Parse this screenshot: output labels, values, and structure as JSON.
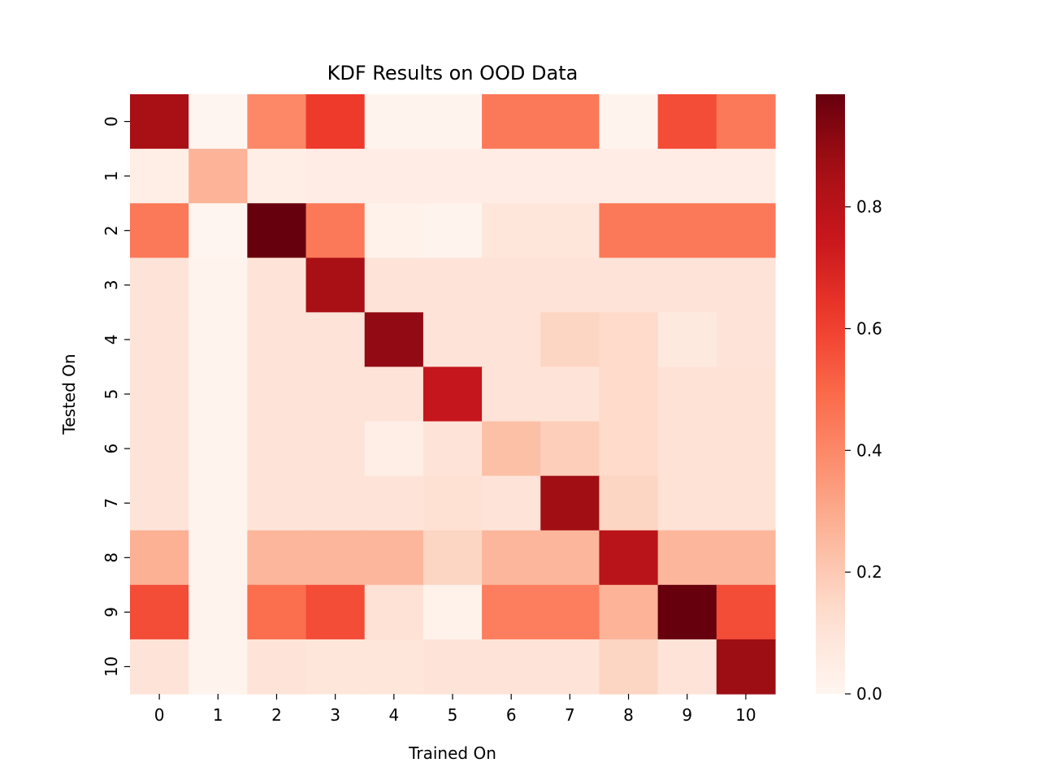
{
  "chart_data": {
    "type": "heatmap",
    "title": "KDF Results on OOD Data",
    "xlabel": "Trained On",
    "ylabel": "Tested On",
    "x_categories": [
      "0",
      "1",
      "2",
      "3",
      "4",
      "5",
      "6",
      "7",
      "8",
      "9",
      "10"
    ],
    "y_categories": [
      "0",
      "1",
      "2",
      "3",
      "4",
      "5",
      "6",
      "7",
      "8",
      "9",
      "10"
    ],
    "colormap": "Reds",
    "vmin": 0.0,
    "vmax": 0.985,
    "colorbar_ticks": [
      "0.0",
      "0.2",
      "0.4",
      "0.6",
      "0.8"
    ],
    "colorbar_tick_values": [
      0.0,
      0.2,
      0.4,
      0.6,
      0.8
    ],
    "values": [
      [
        0.85,
        0.0,
        0.4,
        0.62,
        0.01,
        0.01,
        0.45,
        0.45,
        0.01,
        0.57,
        0.45
      ],
      [
        0.04,
        0.27,
        0.04,
        0.05,
        0.05,
        0.05,
        0.05,
        0.05,
        0.05,
        0.05,
        0.05
      ],
      [
        0.45,
        0.0,
        0.985,
        0.45,
        0.02,
        0.01,
        0.09,
        0.09,
        0.45,
        0.45,
        0.45
      ],
      [
        0.1,
        0.01,
        0.1,
        0.85,
        0.1,
        0.1,
        0.1,
        0.1,
        0.1,
        0.1,
        0.1
      ],
      [
        0.1,
        0.01,
        0.1,
        0.1,
        0.9,
        0.1,
        0.1,
        0.16,
        0.14,
        0.07,
        0.1
      ],
      [
        0.1,
        0.01,
        0.1,
        0.1,
        0.1,
        0.76,
        0.1,
        0.1,
        0.14,
        0.11,
        0.11
      ],
      [
        0.1,
        0.01,
        0.1,
        0.1,
        0.04,
        0.1,
        0.23,
        0.18,
        0.14,
        0.11,
        0.11
      ],
      [
        0.1,
        0.01,
        0.1,
        0.1,
        0.1,
        0.12,
        0.1,
        0.87,
        0.16,
        0.11,
        0.11
      ],
      [
        0.28,
        0.01,
        0.26,
        0.26,
        0.26,
        0.16,
        0.26,
        0.26,
        0.8,
        0.26,
        0.26
      ],
      [
        0.57,
        0.01,
        0.48,
        0.57,
        0.11,
        0.02,
        0.43,
        0.43,
        0.27,
        0.985,
        0.57
      ],
      [
        0.1,
        0.01,
        0.1,
        0.09,
        0.09,
        0.1,
        0.1,
        0.1,
        0.16,
        0.1,
        0.88
      ]
    ]
  }
}
